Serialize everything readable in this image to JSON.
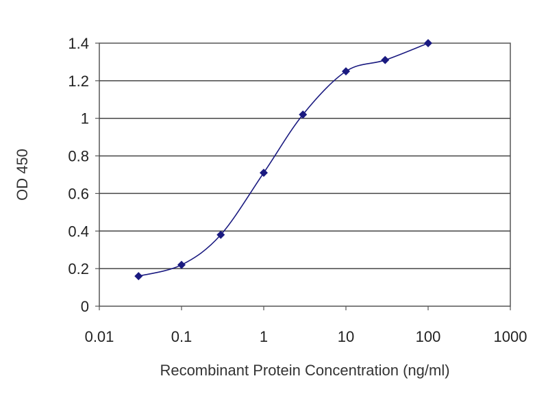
{
  "chart_data": {
    "type": "scatter",
    "title": "",
    "xlabel": "Recombinant Protein Concentration (ng/ml)",
    "ylabel": "OD 450",
    "x_scale": "log",
    "xlim": [
      0.01,
      1000
    ],
    "ylim": [
      0,
      1.4
    ],
    "x_ticks": [
      "0.01",
      "0.1",
      "1",
      "10",
      "100",
      "1000"
    ],
    "x_tick_values": [
      0.01,
      0.1,
      1,
      10,
      100,
      1000
    ],
    "y_ticks": [
      "0",
      "0.2",
      "0.4",
      "0.6",
      "0.8",
      "1",
      "1.2",
      "1.4"
    ],
    "y_tick_values": [
      0,
      0.2,
      0.4,
      0.6,
      0.8,
      1,
      1.2,
      1.4
    ],
    "grid": "horizontal",
    "legend": "none",
    "series": [
      {
        "x": [
          0.03,
          0.1,
          0.3,
          1,
          3,
          10,
          30,
          100
        ],
        "y": [
          0.16,
          0.22,
          0.38,
          0.71,
          1.02,
          1.25,
          1.31,
          1.4
        ],
        "marker": "diamond",
        "smooth_line": true
      }
    ],
    "colors": {
      "series": "#1a1a80",
      "grid": "#444444",
      "axis": "#555555",
      "background": "#ffffff"
    }
  }
}
